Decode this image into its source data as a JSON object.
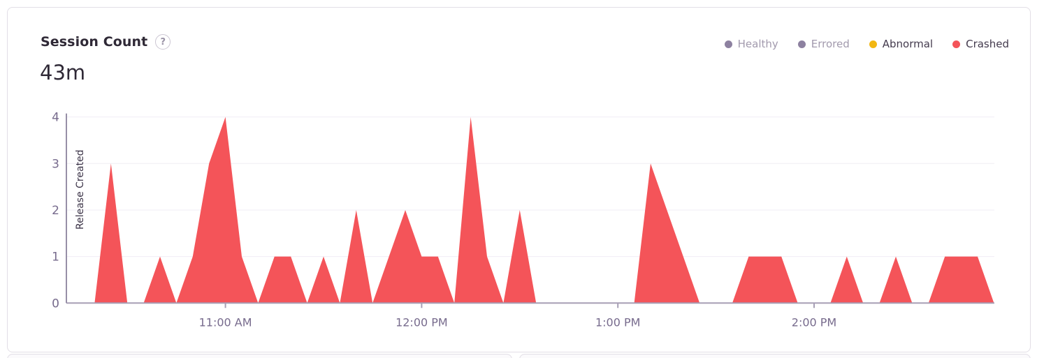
{
  "panel": {
    "title": "Session Count",
    "help_glyph": "?",
    "total": "43m"
  },
  "legend": {
    "items": [
      {
        "label": "Healthy",
        "color": "#8d81a0",
        "selected": false
      },
      {
        "label": "Errored",
        "color": "#8d81a0",
        "selected": false
      },
      {
        "label": "Abnormal",
        "color": "#f2b712",
        "selected": true
      },
      {
        "label": "Crashed",
        "color": "#f45459",
        "selected": true
      }
    ]
  },
  "chart_data": {
    "type": "area",
    "title": "Session Count",
    "xlabel": "",
    "ylabel": "",
    "ylim": [
      0,
      4
    ],
    "yticks": [
      0,
      1,
      2,
      3,
      4
    ],
    "grid": true,
    "legend_position": "top-right",
    "x": [
      "10:15 AM",
      "10:20 AM",
      "10:25 AM",
      "10:30 AM",
      "10:35 AM",
      "10:40 AM",
      "10:45 AM",
      "10:50 AM",
      "10:55 AM",
      "11:00 AM",
      "11:05 AM",
      "11:10 AM",
      "11:15 AM",
      "11:20 AM",
      "11:25 AM",
      "11:30 AM",
      "11:35 AM",
      "11:40 AM",
      "11:45 AM",
      "11:50 AM",
      "11:55 AM",
      "12:00 PM",
      "12:05 PM",
      "12:10 PM",
      "12:15 PM",
      "12:20 PM",
      "12:25 PM",
      "12:30 PM",
      "12:35 PM",
      "12:40 PM",
      "12:45 PM",
      "12:50 PM",
      "12:55 PM",
      "1:00 PM",
      "1:05 PM",
      "1:10 PM",
      "1:15 PM",
      "1:20 PM",
      "1:25 PM",
      "1:30 PM",
      "1:35 PM",
      "1:40 PM",
      "1:45 PM",
      "1:50 PM",
      "1:55 PM",
      "2:00 PM",
      "2:05 PM",
      "2:10 PM",
      "2:15 PM",
      "2:20 PM",
      "2:25 PM",
      "2:30 PM",
      "2:35 PM",
      "2:40 PM",
      "2:45 PM",
      "2:50 PM",
      "2:55 PM"
    ],
    "series": [
      {
        "name": "Crashed",
        "color": "#f45459",
        "values": [
          0,
          0,
          3,
          0,
          0,
          1,
          0,
          1,
          3,
          4,
          1,
          0,
          1,
          1,
          0,
          1,
          0,
          2,
          0,
          1,
          2,
          1,
          1,
          0,
          4,
          1,
          0,
          2,
          0,
          0,
          0,
          0,
          0,
          0,
          0,
          3,
          2,
          1,
          0,
          0,
          0,
          1,
          1,
          1,
          0,
          0,
          0,
          1,
          0,
          0,
          1,
          0,
          0,
          1,
          1,
          1,
          0
        ]
      }
    ],
    "xticks": [
      {
        "label": "11:00 AM",
        "index": 9
      },
      {
        "label": "12:00 PM",
        "index": 21
      },
      {
        "label": "1:00 PM",
        "index": 33
      },
      {
        "label": "2:00 PM",
        "index": 45
      }
    ],
    "annotations": [
      {
        "type": "vline",
        "label": "Release Created",
        "position": "plot-left"
      }
    ]
  },
  "colors": {
    "axis_line": "#a79fb5",
    "tick_label": "#776b8d",
    "gridline": "#f0edf4",
    "release_line": "#978fa7",
    "release_label": "#3b3347",
    "area_fill": "#f45459"
  }
}
